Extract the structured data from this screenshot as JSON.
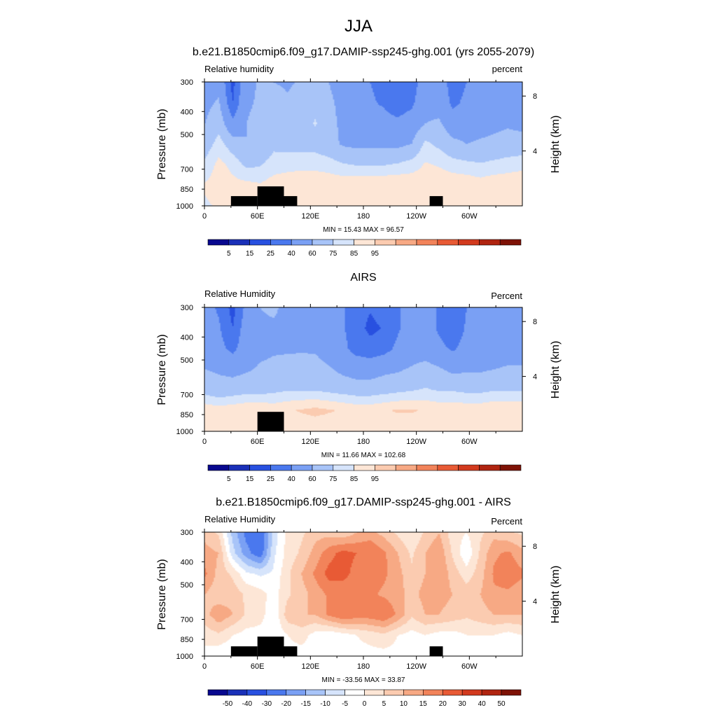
{
  "page_title": "JJA",
  "chart_data": [
    {
      "type": "heatmap",
      "title": "b.e21.B1850cmip6.f09_g17.DAMIP-ssp245-ghg.001 (yrs 2055-2079)",
      "left_label": "Relative humidity",
      "right_label": "percent",
      "xlabel": "",
      "ylabel": "Pressure (mb)",
      "y2label": "Height (km)",
      "x_ticks": [
        "0",
        "60E",
        "120E",
        "180",
        "120W",
        "60W"
      ],
      "x_tick_values": [
        0,
        60,
        120,
        180,
        240,
        300
      ],
      "xlim": [
        0,
        360
      ],
      "y_ticks": [
        "300",
        "400",
        "500",
        "700",
        "850",
        "1000"
      ],
      "y_tick_values": [
        300,
        400,
        500,
        700,
        850,
        1000
      ],
      "ylim": [
        1000,
        300
      ],
      "y_scale": "log",
      "y2_ticks": [
        "8",
        "4"
      ],
      "y2_tick_values": [
        8,
        4
      ],
      "stats": "MIN =  15.43  MAX =  96.57",
      "colorbar_ticks": [
        "5",
        "15",
        "25",
        "40",
        "60",
        "75",
        "85",
        "95"
      ],
      "palette": [
        "#08088f",
        "#1a30b8",
        "#2850e0",
        "#4a78ee",
        "#7aa0f4",
        "#a8c4f8",
        "#d6e4fb",
        "#fde6d6",
        "#fbcbb0",
        "#f7a984",
        "#f2835a",
        "#e85a35",
        "#d23a1e",
        "#b02410",
        "#7e1206"
      ],
      "field": [
        [
          52,
          55,
          20,
          55,
          62,
          60,
          58,
          62,
          64,
          60,
          50,
          45,
          40,
          35,
          25,
          30,
          52,
          50,
          32,
          40,
          45,
          50,
          55,
          50
        ],
        [
          56,
          62,
          25,
          58,
          62,
          66,
          62,
          66,
          72,
          64,
          54,
          48,
          42,
          38,
          30,
          36,
          56,
          54,
          36,
          44,
          48,
          52,
          56,
          52
        ],
        [
          60,
          70,
          45,
          60,
          64,
          70,
          66,
          68,
          76,
          66,
          56,
          52,
          48,
          46,
          44,
          50,
          60,
          62,
          50,
          52,
          54,
          56,
          58,
          56
        ],
        [
          68,
          80,
          68,
          60,
          64,
          72,
          70,
          70,
          70,
          66,
          58,
          56,
          56,
          56,
          56,
          60,
          78,
          72,
          64,
          60,
          62,
          64,
          66,
          66
        ],
        [
          78,
          88,
          82,
          72,
          74,
          80,
          82,
          82,
          82,
          80,
          76,
          74,
          74,
          74,
          76,
          80,
          86,
          84,
          80,
          78,
          76,
          78,
          80,
          82
        ],
        [
          86,
          90,
          88,
          88,
          86,
          90,
          90,
          92,
          92,
          92,
          92,
          94,
          94,
          94,
          94,
          92,
          90,
          92,
          92,
          92,
          90,
          92,
          92,
          92
        ],
        [
          84,
          86,
          86,
          84,
          84,
          86,
          86,
          86,
          86,
          86,
          86,
          86,
          86,
          86,
          86,
          86,
          86,
          86,
          86,
          86,
          86,
          86,
          86,
          86
        ]
      ],
      "terrain": [
        [
          2,
          4,
          1
        ],
        [
          4,
          6,
          2
        ],
        [
          6,
          7,
          1
        ],
        [
          17,
          18,
          1
        ],
        [
          47,
          52,
          1
        ]
      ]
    },
    {
      "type": "heatmap",
      "title": "AIRS",
      "left_label": "Relative Humidity",
      "right_label": "Percent",
      "xlabel": "",
      "ylabel": "Pressure (mb)",
      "y2label": "Height (km)",
      "x_ticks": [
        "0",
        "60E",
        "120E",
        "180",
        "120W",
        "60W"
      ],
      "x_tick_values": [
        0,
        60,
        120,
        180,
        240,
        300
      ],
      "xlim": [
        0,
        360
      ],
      "y_ticks": [
        "300",
        "400",
        "500",
        "700",
        "850",
        "1000"
      ],
      "y_tick_values": [
        300,
        400,
        500,
        700,
        850,
        1000
      ],
      "ylim": [
        1000,
        300
      ],
      "y_scale": "log",
      "y2_ticks": [
        "8",
        "4"
      ],
      "y2_tick_values": [
        8,
        4
      ],
      "stats": "MIN =  11.66  MAX = 102.68",
      "colorbar_ticks": [
        "5",
        "15",
        "25",
        "40",
        "60",
        "75",
        "85",
        "95"
      ],
      "palette": [
        "#08088f",
        "#1a30b8",
        "#2850e0",
        "#4a78ee",
        "#7aa0f4",
        "#a8c4f8",
        "#d6e4fb",
        "#fde6d6",
        "#fbcbb0",
        "#f7a984",
        "#f2835a",
        "#e85a35",
        "#d23a1e",
        "#b02410",
        "#7e1206"
      ],
      "field": [
        [
          45,
          38,
          20,
          45,
          60,
          62,
          56,
          58,
          56,
          52,
          42,
          30,
          26,
          30,
          38,
          48,
          46,
          38,
          30,
          40,
          45,
          45,
          50,
          45
        ],
        [
          50,
          42,
          25,
          50,
          58,
          58,
          56,
          58,
          56,
          52,
          42,
          30,
          22,
          26,
          38,
          48,
          46,
          38,
          30,
          42,
          42,
          45,
          50,
          48
        ],
        [
          52,
          46,
          35,
          52,
          56,
          58,
          58,
          58,
          58,
          52,
          44,
          34,
          30,
          34,
          44,
          50,
          48,
          44,
          38,
          46,
          48,
          50,
          52,
          52
        ],
        [
          60,
          58,
          55,
          58,
          62,
          64,
          66,
          68,
          66,
          62,
          56,
          52,
          52,
          56,
          58,
          62,
          68,
          62,
          56,
          58,
          58,
          60,
          62,
          62
        ],
        [
          70,
          66,
          68,
          70,
          70,
          72,
          74,
          74,
          74,
          72,
          70,
          68,
          68,
          70,
          72,
          74,
          76,
          74,
          74,
          72,
          72,
          74,
          74,
          74
        ],
        [
          92,
          90,
          92,
          94,
          94,
          92,
          94,
          96,
          98,
          96,
          94,
          92,
          92,
          94,
          96,
          96,
          94,
          92,
          92,
          92,
          92,
          94,
          94,
          94
        ],
        [
          88,
          88,
          88,
          88,
          88,
          88,
          88,
          88,
          88,
          88,
          88,
          88,
          88,
          88,
          88,
          88,
          88,
          88,
          88,
          88,
          88,
          88,
          88,
          88
        ]
      ],
      "terrain": [
        [
          4,
          6,
          2
        ]
      ]
    },
    {
      "type": "heatmap",
      "title": "b.e21.B1850cmip6.f09_g17.DAMIP-ssp245-ghg.001 - AIRS",
      "left_label": "Relative Humidity",
      "right_label": "Percent",
      "xlabel": "",
      "ylabel": "Pressure (mb)",
      "y2label": "Height (km)",
      "x_ticks": [
        "0",
        "60E",
        "120E",
        "180",
        "120W",
        "60W"
      ],
      "x_tick_values": [
        0,
        60,
        120,
        180,
        240,
        300
      ],
      "xlim": [
        0,
        360
      ],
      "y_ticks": [
        "300",
        "400",
        "500",
        "700",
        "850",
        "1000"
      ],
      "y_tick_values": [
        300,
        400,
        500,
        700,
        850,
        1000
      ],
      "ylim": [
        1000,
        300
      ],
      "y_scale": "log",
      "y2_ticks": [
        "8",
        "4"
      ],
      "y2_tick_values": [
        8,
        4
      ],
      "stats": "MIN = -33.56  MAX =  33.87",
      "colorbar_ticks": [
        "-50",
        "-40",
        "-30",
        "-20",
        "-15",
        "-10",
        "-5",
        "0",
        "5",
        "10",
        "15",
        "20",
        "30",
        "40",
        "50"
      ],
      "palette": [
        "#08088f",
        "#1a30b8",
        "#2850e0",
        "#4a78ee",
        "#7aa0f4",
        "#a8c4f8",
        "#d6e4fb",
        "#ffffff",
        "#fde6d6",
        "#fbcbb0",
        "#f7a984",
        "#f2835a",
        "#e85a35",
        "#d23a1e",
        "#b02410",
        "#7e1206"
      ],
      "field": [
        [
          8,
          4,
          -12,
          -22,
          -26,
          -8,
          2,
          4,
          8,
          8,
          6,
          10,
          12,
          8,
          4,
          0,
          6,
          10,
          2,
          0,
          4,
          8,
          6,
          4
        ],
        [
          12,
          10,
          -8,
          -18,
          -24,
          -6,
          2,
          6,
          12,
          18,
          22,
          20,
          20,
          16,
          10,
          4,
          10,
          14,
          4,
          -4,
          6,
          14,
          16,
          12
        ],
        [
          16,
          8,
          4,
          -4,
          -6,
          -4,
          4,
          10,
          16,
          22,
          22,
          18,
          18,
          16,
          12,
          6,
          10,
          14,
          8,
          2,
          8,
          16,
          18,
          16
        ],
        [
          10,
          6,
          8,
          4,
          2,
          -2,
          4,
          8,
          12,
          16,
          16,
          16,
          16,
          14,
          12,
          8,
          12,
          12,
          10,
          8,
          10,
          14,
          14,
          12
        ],
        [
          8,
          14,
          10,
          4,
          2,
          -4,
          8,
          10,
          10,
          16,
          20,
          18,
          18,
          20,
          14,
          6,
          10,
          10,
          8,
          6,
          8,
          10,
          10,
          10
        ],
        [
          2,
          4,
          0,
          -2,
          -2,
          -4,
          0,
          2,
          -2,
          -4,
          -2,
          0,
          2,
          4,
          0,
          -2,
          0,
          -2,
          -2,
          0,
          0,
          0,
          -2,
          0
        ],
        [
          -2,
          -4,
          -4,
          -2,
          -2,
          -2,
          -2,
          -2,
          -2,
          -2,
          -2,
          -2,
          -2,
          -2,
          -2,
          -2,
          -2,
          -2,
          -2,
          -2,
          -2,
          -2,
          -2,
          -2
        ]
      ],
      "terrain": [
        [
          2,
          4,
          1
        ],
        [
          4,
          6,
          2
        ],
        [
          6,
          7,
          1
        ],
        [
          17,
          18,
          1
        ],
        [
          47,
          52,
          1
        ]
      ]
    }
  ]
}
